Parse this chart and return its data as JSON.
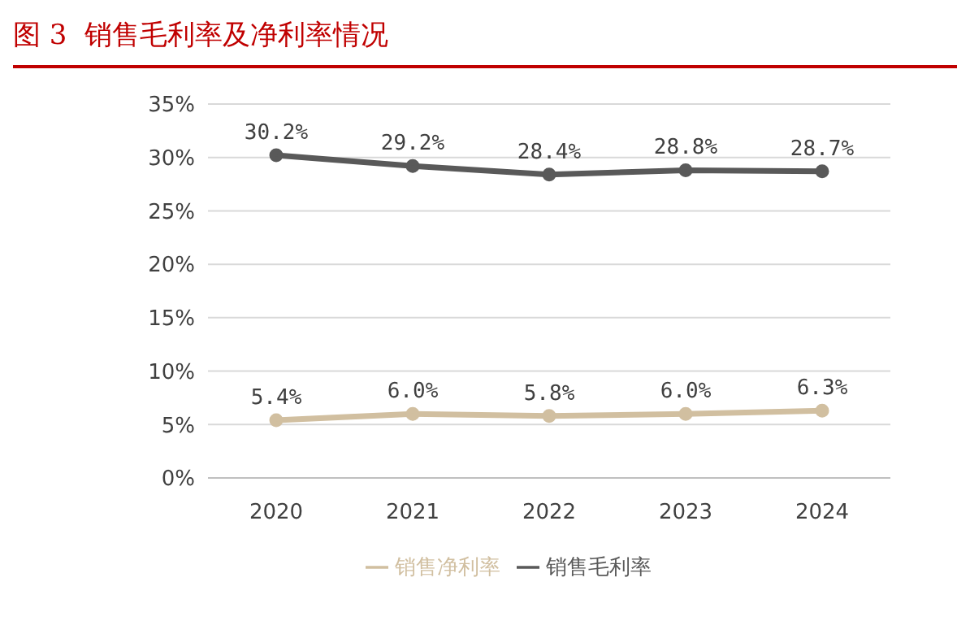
{
  "chart_data": {
    "type": "line",
    "title": "图 3  销售毛利率及净利率情况",
    "categories": [
      "2020",
      "2021",
      "2022",
      "2023",
      "2024"
    ],
    "series": [
      {
        "name": "销售毛利率",
        "color": "#595959",
        "values": [
          30.2,
          29.2,
          28.4,
          28.8,
          28.7
        ],
        "value_labels": [
          "30.2%",
          "29.2%",
          "28.4%",
          "28.8%",
          "28.7%"
        ]
      },
      {
        "name": "销售净利率",
        "color": "#d1bfa0",
        "values": [
          5.4,
          6.0,
          5.8,
          6.0,
          6.3
        ],
        "value_labels": [
          "5.4%",
          "6.0%",
          "5.8%",
          "6.0%",
          "6.3%"
        ]
      }
    ],
    "ylim": [
      0,
      35
    ],
    "yticks": [
      {
        "value": 0,
        "label": "0%"
      },
      {
        "value": 5,
        "label": "5%"
      },
      {
        "value": 10,
        "label": "10%"
      },
      {
        "value": 15,
        "label": "15%"
      },
      {
        "value": 20,
        "label": "20%"
      },
      {
        "value": 25,
        "label": "25%"
      },
      {
        "value": 30,
        "label": "30%"
      },
      {
        "value": 35,
        "label": "35%"
      }
    ],
    "grid": "y",
    "legend": "bottom",
    "marker": "circle",
    "line_style": "solid"
  }
}
